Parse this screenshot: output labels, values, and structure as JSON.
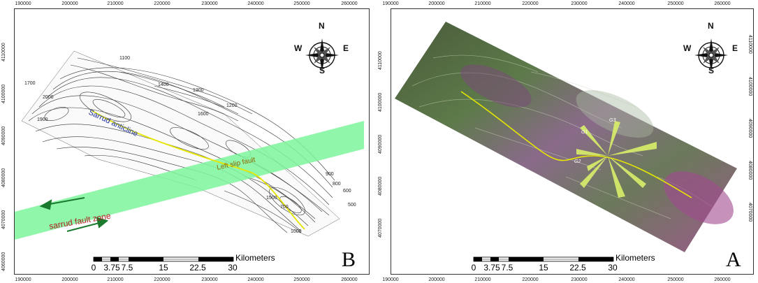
{
  "axis": {
    "x_ticks": [
      "190000",
      "200000",
      "210000",
      "220000",
      "230000",
      "240000",
      "250000",
      "260000"
    ],
    "y_ticks": [
      "4110000",
      "4100000",
      "4090000",
      "4080000",
      "4070000",
      "4060000"
    ]
  },
  "compass": {
    "north": "N",
    "south": "S",
    "east": "E",
    "west": "W"
  },
  "scalebar": {
    "unit": "Kilometers",
    "ticks": [
      "0",
      "3.75",
      "7.5",
      "15",
      "22.5",
      "30"
    ]
  },
  "panel_b": {
    "letter": "B",
    "labels": {
      "anticline": "Sarrud anticline",
      "fault_zone": "sarrud fault zone",
      "left_slip": "Left slip fault"
    },
    "contours": [
      "1100",
      "1300",
      "1200",
      "1700",
      "1400",
      "1600",
      "1900",
      "2000",
      "1500",
      "900",
      "800",
      "600",
      "500",
      "1000",
      "700"
    ]
  },
  "panel_a": {
    "letter": "A",
    "labels": {
      "g1": "G1",
      "g2": "G2",
      "g3": "G3"
    }
  },
  "colors": {
    "fault_zone": "#7cf59a",
    "anticline_axis": "#e6e600",
    "fold_rose": "#d9ef6a",
    "arrow": "#1a7a2e"
  }
}
